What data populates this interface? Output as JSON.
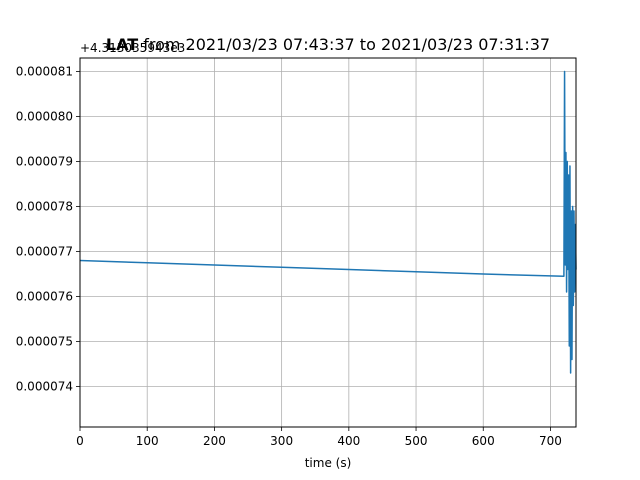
{
  "chart_data": {
    "type": "line",
    "title_bold": "LAT",
    "title_rest": " from 2021/03/23 07:43:37 to 2021/03/23 07:31:37",
    "offset_text": "+4.313035943e3",
    "xlabel": "time (s)",
    "ylabel": "",
    "xlim": [
      0,
      738
    ],
    "ylim": [
      7.31e-05,
      8.13e-05
    ],
    "x_ticks": [
      0,
      100,
      200,
      300,
      400,
      500,
      600,
      700
    ],
    "x_tick_labels": [
      "0",
      "100",
      "200",
      "300",
      "400",
      "500",
      "600",
      "700"
    ],
    "y_ticks": [
      7.4e-05,
      7.5e-05,
      7.6e-05,
      7.7e-05,
      7.8e-05,
      7.9e-05,
      8e-05,
      8.1e-05
    ],
    "y_tick_labels": [
      "0.000074",
      "0.000075",
      "0.000076",
      "0.000077",
      "0.000078",
      "0.000079",
      "0.000080",
      "0.000081"
    ],
    "grid": true,
    "series": [
      {
        "color": "#1f77b4",
        "x": [
          0,
          100,
          200,
          300,
          400,
          500,
          600,
          720,
          721,
          722,
          723,
          724,
          725,
          726,
          727,
          728,
          729,
          730,
          731,
          732,
          733,
          734,
          735,
          736,
          737,
          738
        ],
        "y": [
          7.68e-05,
          7.675e-05,
          7.67e-05,
          7.665e-05,
          7.66e-05,
          7.655e-05,
          7.65e-05,
          7.645e-05,
          8.1e-05,
          7.67e-05,
          7.92e-05,
          7.61e-05,
          7.9e-05,
          7.66e-05,
          7.87e-05,
          7.49e-05,
          7.89e-05,
          7.43e-05,
          7.79e-05,
          7.46e-05,
          7.8e-05,
          7.58e-05,
          7.79e-05,
          7.61e-05,
          7.76e-05,
          7.66e-05
        ]
      }
    ]
  }
}
